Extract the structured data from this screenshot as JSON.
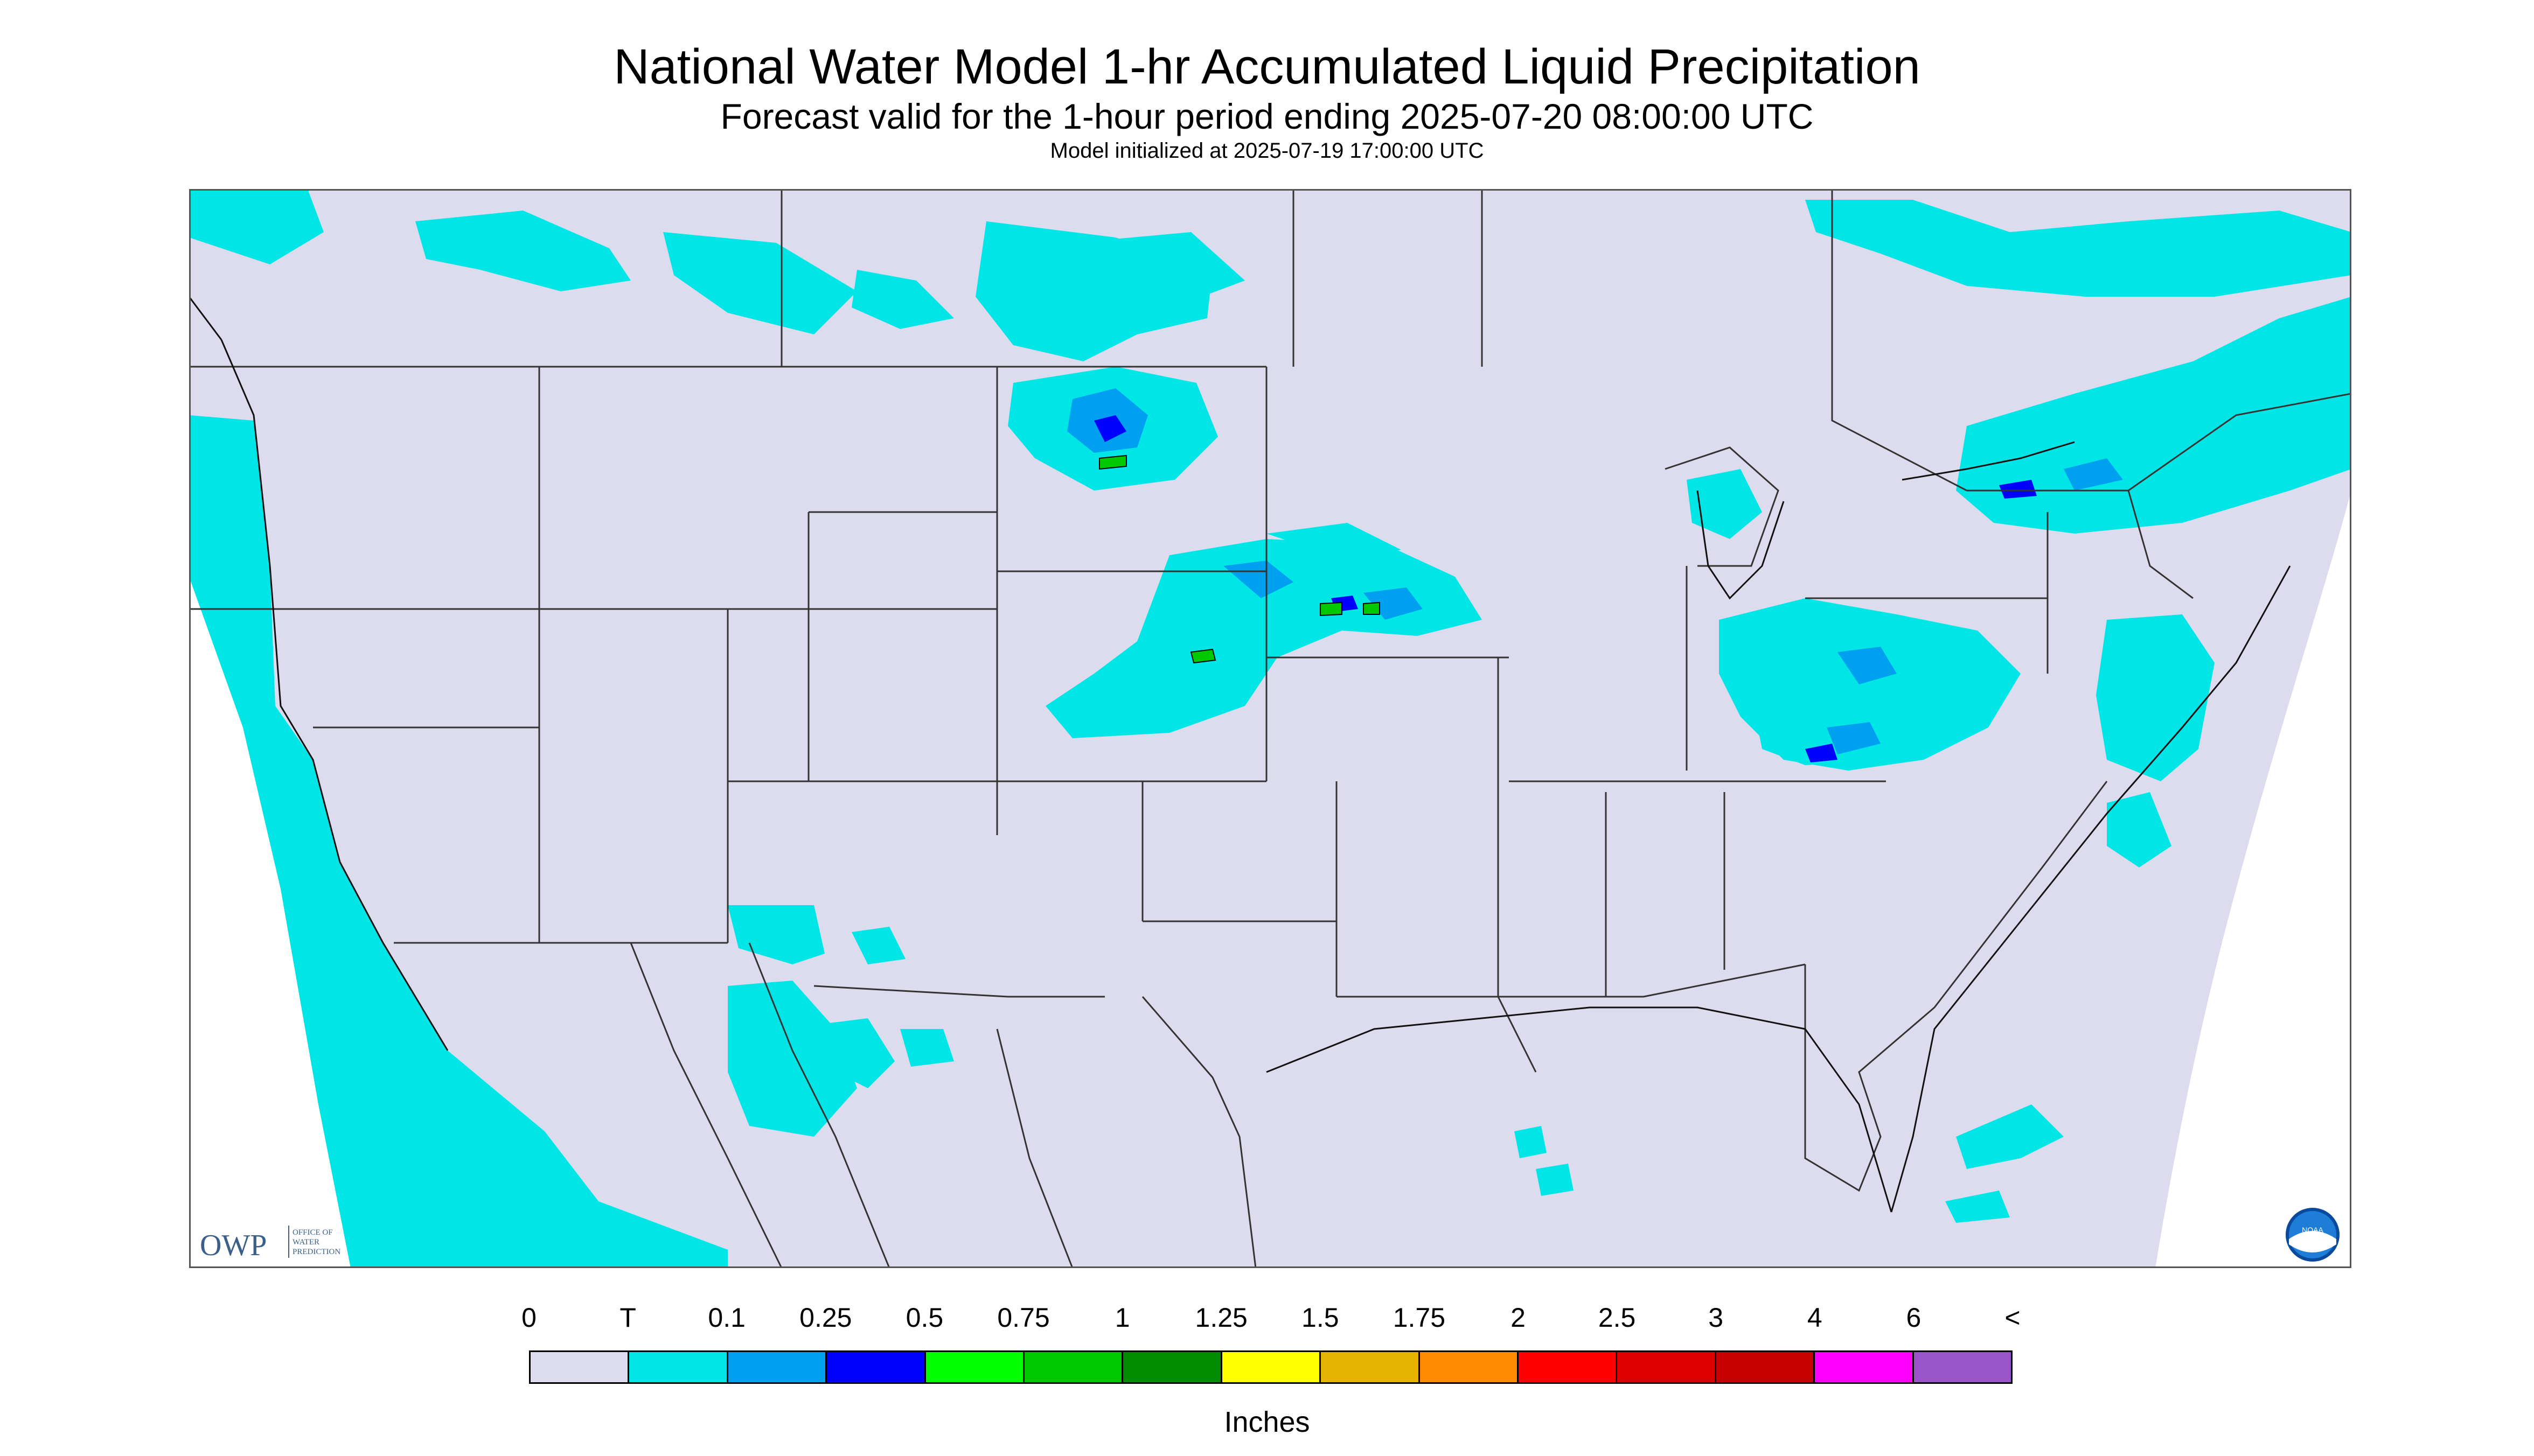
{
  "title": "National Water Model 1-hr Accumulated Liquid Precipitation",
  "subtitle": "Forecast valid for the 1-hour period ending 2025-07-20 08:00:00 UTC",
  "init_text": "Model initialized at 2025-07-19 17:00:00 UTC",
  "logo_owp": {
    "letters": "OWP",
    "line1": "OFFICE OF",
    "line2": "WATER",
    "line3": "PREDICTION"
  },
  "logo_noaa": "NOAA",
  "legend": {
    "units": "Inches",
    "labels": [
      "0",
      "T",
      "0.1",
      "0.25",
      "0.5",
      "0.75",
      "1",
      "1.25",
      "1.5",
      "1.75",
      "2",
      "2.5",
      "3",
      "4",
      "6",
      "<"
    ],
    "colors": [
      "#dcdcee",
      "#00e6e6",
      "#00a0f0",
      "#0000ff",
      "#00ff00",
      "#00c800",
      "#008c00",
      "#ffff00",
      "#e6b400",
      "#ff8c00",
      "#ff0000",
      "#dc0000",
      "#c80000",
      "#ff00ff",
      "#9955c9"
    ]
  },
  "colors": {
    "land_bg": "#dcdcee",
    "trace": "#00e6e6",
    "light": "#00a0f0",
    "moderate": "#0000ff",
    "heavy": "#00c800",
    "border_line": "#333333"
  }
}
